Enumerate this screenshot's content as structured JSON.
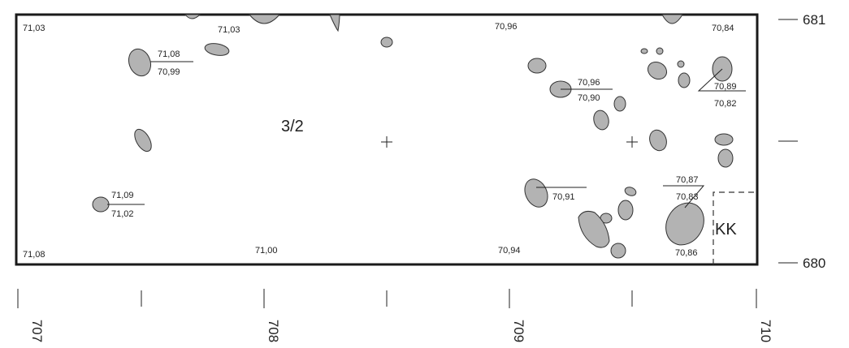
{
  "trench": {
    "label": "3/2",
    "area_label": "KK",
    "northing_labels": [
      "681",
      "680"
    ],
    "easting_labels": [
      "707",
      "708",
      "709",
      "710"
    ]
  },
  "elevations": {
    "corner_tl": "71,03",
    "top_mid": "71,03",
    "top_right_mid": "70,96",
    "top_right": "70,84",
    "bottom_left": "71,08",
    "bottom_mid": "71,00",
    "bottom_right_mid": "70,94",
    "bottom_right": "70,86",
    "pit_a_top": "71,08",
    "pit_a_bottom": "70,99",
    "pit_b_top": "70,96",
    "pit_b_bottom": "70,90",
    "pit_c_top": "70,89",
    "pit_c_bottom": "70,82",
    "pit_d_top": "71,09",
    "pit_d_bottom": "71,02",
    "pit_e": "70,91",
    "pit_f_top": "70,87",
    "pit_f_bottom": "70,83"
  }
}
